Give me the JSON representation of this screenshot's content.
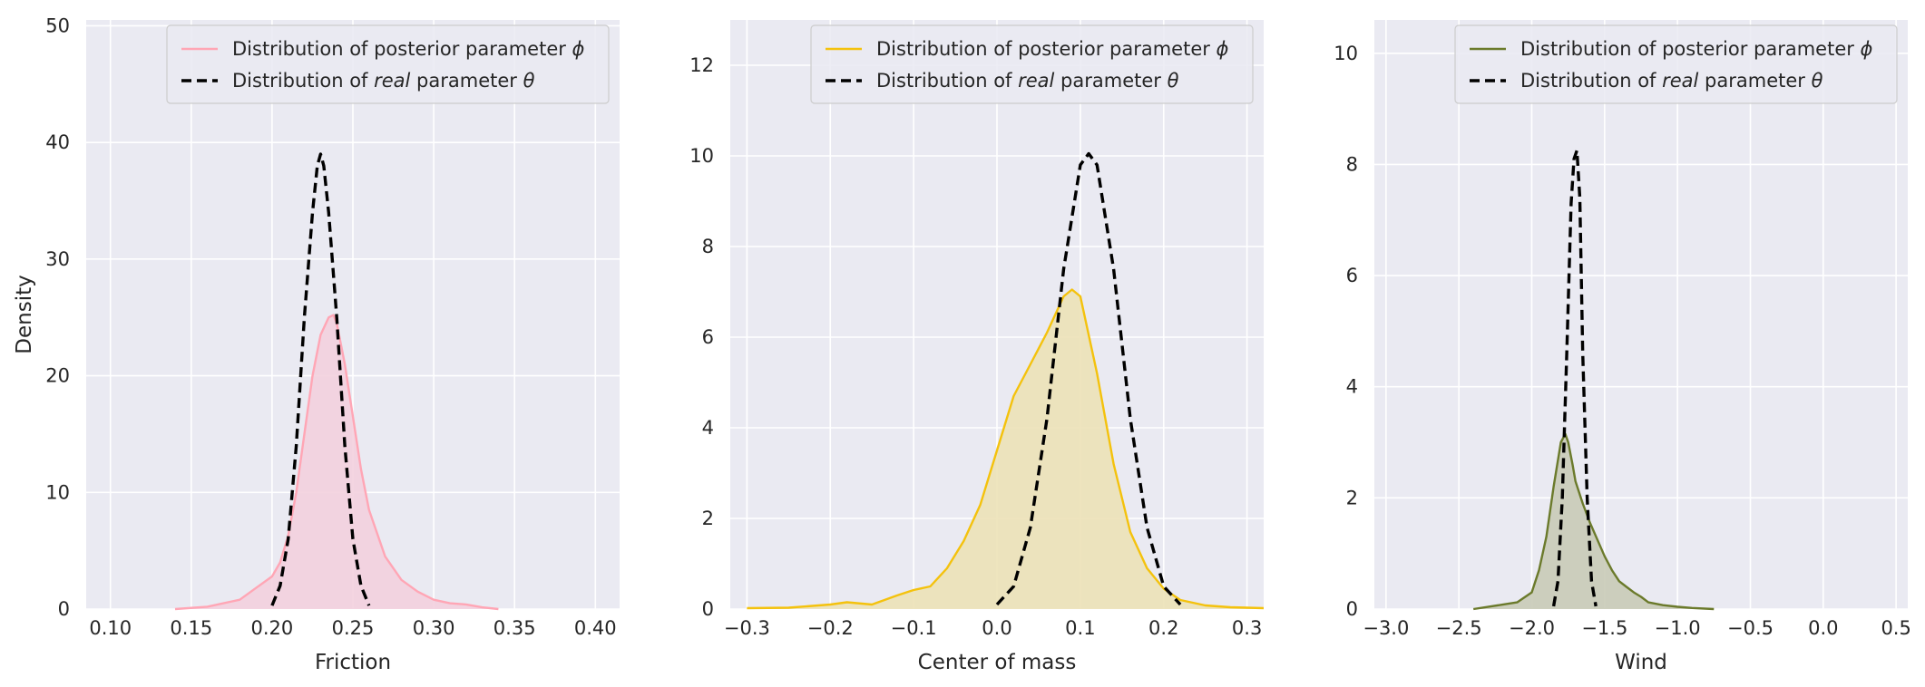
{
  "chart_data": [
    {
      "type": "area",
      "xlabel": "Friction",
      "ylabel": "Density",
      "xlim": [
        0.085,
        0.415
      ],
      "ylim": [
        0,
        50.5
      ],
      "xticks": [
        0.1,
        0.15,
        0.2,
        0.25,
        0.3,
        0.35,
        0.4
      ],
      "xtick_labels": [
        "0.10",
        "0.15",
        "0.20",
        "0.25",
        "0.30",
        "0.35",
        "0.40"
      ],
      "yticks": [
        0,
        10,
        20,
        30,
        40,
        50
      ],
      "ytick_labels": [
        "0",
        "10",
        "20",
        "30",
        "40",
        "50"
      ],
      "grid": true,
      "legend_placement": "top-right",
      "series": [
        {
          "name": "Distribution of posterior parameter ϕ",
          "name_prefix": "Distribution of posterior parameter ",
          "name_symbol": "ϕ",
          "color": "#ffa6b5",
          "fill_color": "#f3d0de",
          "style": "solid-filled",
          "x": [
            0.14,
            0.16,
            0.18,
            0.19,
            0.2,
            0.205,
            0.21,
            0.215,
            0.22,
            0.225,
            0.23,
            0.235,
            0.238,
            0.24,
            0.245,
            0.25,
            0.255,
            0.26,
            0.27,
            0.28,
            0.29,
            0.3,
            0.31,
            0.32,
            0.33,
            0.34
          ],
          "y": [
            0,
            0.2,
            0.8,
            1.8,
            2.8,
            4,
            6.3,
            10,
            15,
            20,
            23.5,
            25,
            25.2,
            24.5,
            21,
            16.5,
            12,
            8.5,
            4.5,
            2.5,
            1.5,
            0.8,
            0.5,
            0.4,
            0.15,
            0
          ]
        },
        {
          "name": "Distribution of real parameter θ",
          "name_prefix": "Distribution of ",
          "name_italic": "real",
          "name_suffix": " parameter ",
          "name_symbol": "θ",
          "color": "#000000",
          "style": "dashed",
          "x": [
            0.2,
            0.205,
            0.21,
            0.215,
            0.22,
            0.225,
            0.228,
            0.23,
            0.232,
            0.235,
            0.24,
            0.245,
            0.25,
            0.255,
            0.26
          ],
          "y": [
            0.3,
            2,
            6,
            14,
            25,
            34,
            38,
            39,
            38,
            34,
            25,
            14,
            6,
            2,
            0.3
          ]
        }
      ]
    },
    {
      "type": "area",
      "xlabel": "Center of mass",
      "ylabel": "",
      "xlim": [
        -0.32,
        0.32
      ],
      "ylim": [
        0,
        13
      ],
      "xticks": [
        -0.3,
        -0.2,
        -0.1,
        0.0,
        0.1,
        0.2,
        0.3
      ],
      "xtick_labels": [
        "−0.3",
        "−0.2",
        "−0.1",
        "0.0",
        "0.1",
        "0.2",
        "0.3"
      ],
      "yticks": [
        0,
        2,
        4,
        6,
        8,
        10,
        12
      ],
      "ytick_labels": [
        "0",
        "2",
        "4",
        "6",
        "8",
        "10",
        "12"
      ],
      "grid": true,
      "legend_placement": "top-right",
      "series": [
        {
          "name": "Distribution of posterior parameter ϕ",
          "name_prefix": "Distribution of posterior parameter ",
          "name_symbol": "ϕ",
          "color": "#f4c20d",
          "fill_color": "#ece2b7",
          "style": "solid-filled",
          "x": [
            -0.3,
            -0.25,
            -0.2,
            -0.18,
            -0.15,
            -0.12,
            -0.1,
            -0.08,
            -0.06,
            -0.04,
            -0.02,
            0.0,
            0.02,
            0.04,
            0.06,
            0.08,
            0.09,
            0.1,
            0.12,
            0.14,
            0.16,
            0.18,
            0.2,
            0.22,
            0.25,
            0.28,
            0.32
          ],
          "y": [
            0.02,
            0.03,
            0.1,
            0.15,
            0.1,
            0.3,
            0.42,
            0.5,
            0.9,
            1.5,
            2.3,
            3.5,
            4.7,
            5.4,
            6.1,
            6.9,
            7.05,
            6.9,
            5.2,
            3.2,
            1.7,
            0.9,
            0.45,
            0.2,
            0.08,
            0.04,
            0.02
          ]
        },
        {
          "name": "Distribution of real parameter θ",
          "name_prefix": "Distribution of ",
          "name_italic": "real",
          "name_suffix": " parameter ",
          "name_symbol": "θ",
          "color": "#000000",
          "style": "dashed",
          "x": [
            0.0,
            0.02,
            0.04,
            0.06,
            0.08,
            0.1,
            0.11,
            0.12,
            0.14,
            0.16,
            0.18,
            0.2,
            0.22
          ],
          "y": [
            0.1,
            0.5,
            1.8,
            4.2,
            7.5,
            9.8,
            10.05,
            9.8,
            7.5,
            4.2,
            1.8,
            0.5,
            0.1
          ]
        }
      ]
    },
    {
      "type": "area",
      "xlabel": "Wind",
      "ylabel": "",
      "xlim": [
        -3.08,
        0.58
      ],
      "ylim": [
        0,
        10.6
      ],
      "xticks": [
        -3.0,
        -2.5,
        -2.0,
        -1.5,
        -1.0,
        -0.5,
        0.0,
        0.5
      ],
      "xtick_labels": [
        "−3.0",
        "−2.5",
        "−2.0",
        "−1.5",
        "−1.0",
        "−0.5",
        "0.0",
        "0.5"
      ],
      "yticks": [
        0,
        2,
        4,
        6,
        8,
        10
      ],
      "ytick_labels": [
        "0",
        "2",
        "4",
        "6",
        "8",
        "10"
      ],
      "grid": true,
      "legend_placement": "top-right",
      "series": [
        {
          "name": "Distribution of posterior parameter ϕ",
          "name_prefix": "Distribution of posterior parameter ",
          "name_symbol": "ϕ",
          "color": "#6b7a2b",
          "fill_color": "#c9cbb7",
          "style": "solid-filled",
          "x": [
            -2.4,
            -2.2,
            -2.1,
            -2.0,
            -1.95,
            -1.9,
            -1.85,
            -1.8,
            -1.77,
            -1.75,
            -1.72,
            -1.7,
            -1.65,
            -1.6,
            -1.55,
            -1.5,
            -1.45,
            -1.4,
            -1.35,
            -1.3,
            -1.25,
            -1.2,
            -1.1,
            -1.0,
            -0.9,
            -0.75
          ],
          "y": [
            0,
            0.08,
            0.12,
            0.3,
            0.7,
            1.3,
            2.2,
            3.0,
            3.15,
            3.0,
            2.6,
            2.3,
            1.9,
            1.55,
            1.25,
            0.95,
            0.7,
            0.5,
            0.4,
            0.3,
            0.22,
            0.12,
            0.07,
            0.04,
            0.02,
            0
          ]
        },
        {
          "name": "Distribution of real parameter θ",
          "name_prefix": "Distribution of ",
          "name_italic": "real",
          "name_suffix": " parameter ",
          "name_symbol": "θ",
          "color": "#000000",
          "style": "dashed",
          "x": [
            -1.85,
            -1.82,
            -1.79,
            -1.76,
            -1.73,
            -1.71,
            -1.69,
            -1.67,
            -1.65,
            -1.62,
            -1.59,
            -1.56
          ],
          "y": [
            0.05,
            0.5,
            2.0,
            4.6,
            7.3,
            8.1,
            8.25,
            7.4,
            4.6,
            2.0,
            0.5,
            0.05
          ]
        }
      ]
    }
  ]
}
